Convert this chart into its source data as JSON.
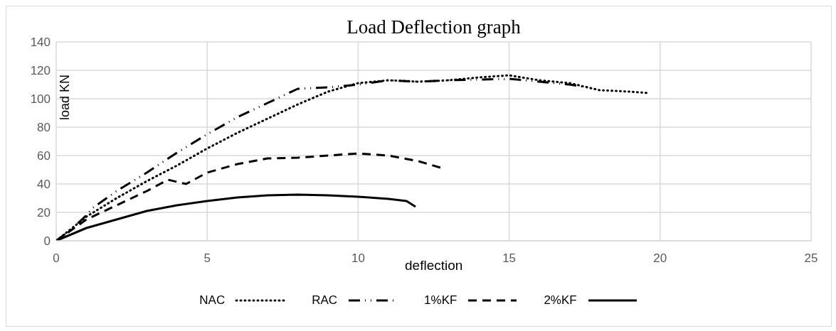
{
  "chart_data": {
    "type": "line",
    "title": "Load Deflection graph",
    "xlabel": "deflection",
    "ylabel": "load KN",
    "xlim": [
      0,
      25
    ],
    "xticks": [
      0,
      5,
      10,
      15,
      20,
      25
    ],
    "ylim": [
      0,
      140
    ],
    "yticks": [
      0,
      20,
      40,
      60,
      80,
      100,
      120,
      140
    ],
    "grid": true,
    "legend": "bottom",
    "marker": "none",
    "series": [
      {
        "name": "NAC",
        "color": "#000000",
        "line_style": "dotted",
        "x": [
          0,
          1,
          2,
          3,
          4,
          5,
          6,
          7,
          8,
          9,
          10,
          11,
          12,
          13,
          14,
          15,
          16,
          17,
          18,
          19,
          19.6
        ],
        "values": [
          0,
          17,
          30,
          42,
          53,
          65,
          76,
          86,
          96,
          105,
          111,
          113,
          112,
          113,
          115,
          116.5,
          113,
          111,
          106,
          105,
          104
        ]
      },
      {
        "name": "RAC",
        "color": "#000000",
        "line_style": "dashdot",
        "x": [
          0,
          0.5,
          1,
          1.2,
          2,
          3,
          4,
          5,
          6,
          7,
          8,
          9,
          10,
          11,
          12,
          13,
          14,
          15,
          16,
          17,
          17.6
        ],
        "values": [
          0,
          8,
          18,
          23,
          35,
          48,
          62,
          75,
          87,
          97,
          107,
          108,
          110,
          113,
          112,
          113,
          113.5,
          114,
          112,
          110,
          108
        ]
      },
      {
        "name": "1%KF",
        "color": "#000000",
        "line_style": "dashed",
        "x": [
          0,
          1,
          2,
          3,
          3.7,
          4.3,
          5,
          6,
          7,
          8,
          9,
          10,
          11,
          12,
          12.8
        ],
        "values": [
          0,
          15,
          25,
          35,
          43,
          40,
          48,
          54,
          58,
          58.5,
          60,
          61.5,
          60,
          56,
          51
        ]
      },
      {
        "name": "2%KF",
        "color": "#000000",
        "line_style": "solid",
        "x": [
          0,
          1,
          2,
          3,
          4,
          5,
          6,
          7,
          8,
          9,
          10,
          11,
          11.6,
          11.9
        ],
        "values": [
          0,
          9,
          15,
          21,
          25,
          28,
          30.5,
          32,
          32.5,
          32,
          31,
          29.5,
          28,
          24
        ]
      }
    ]
  }
}
